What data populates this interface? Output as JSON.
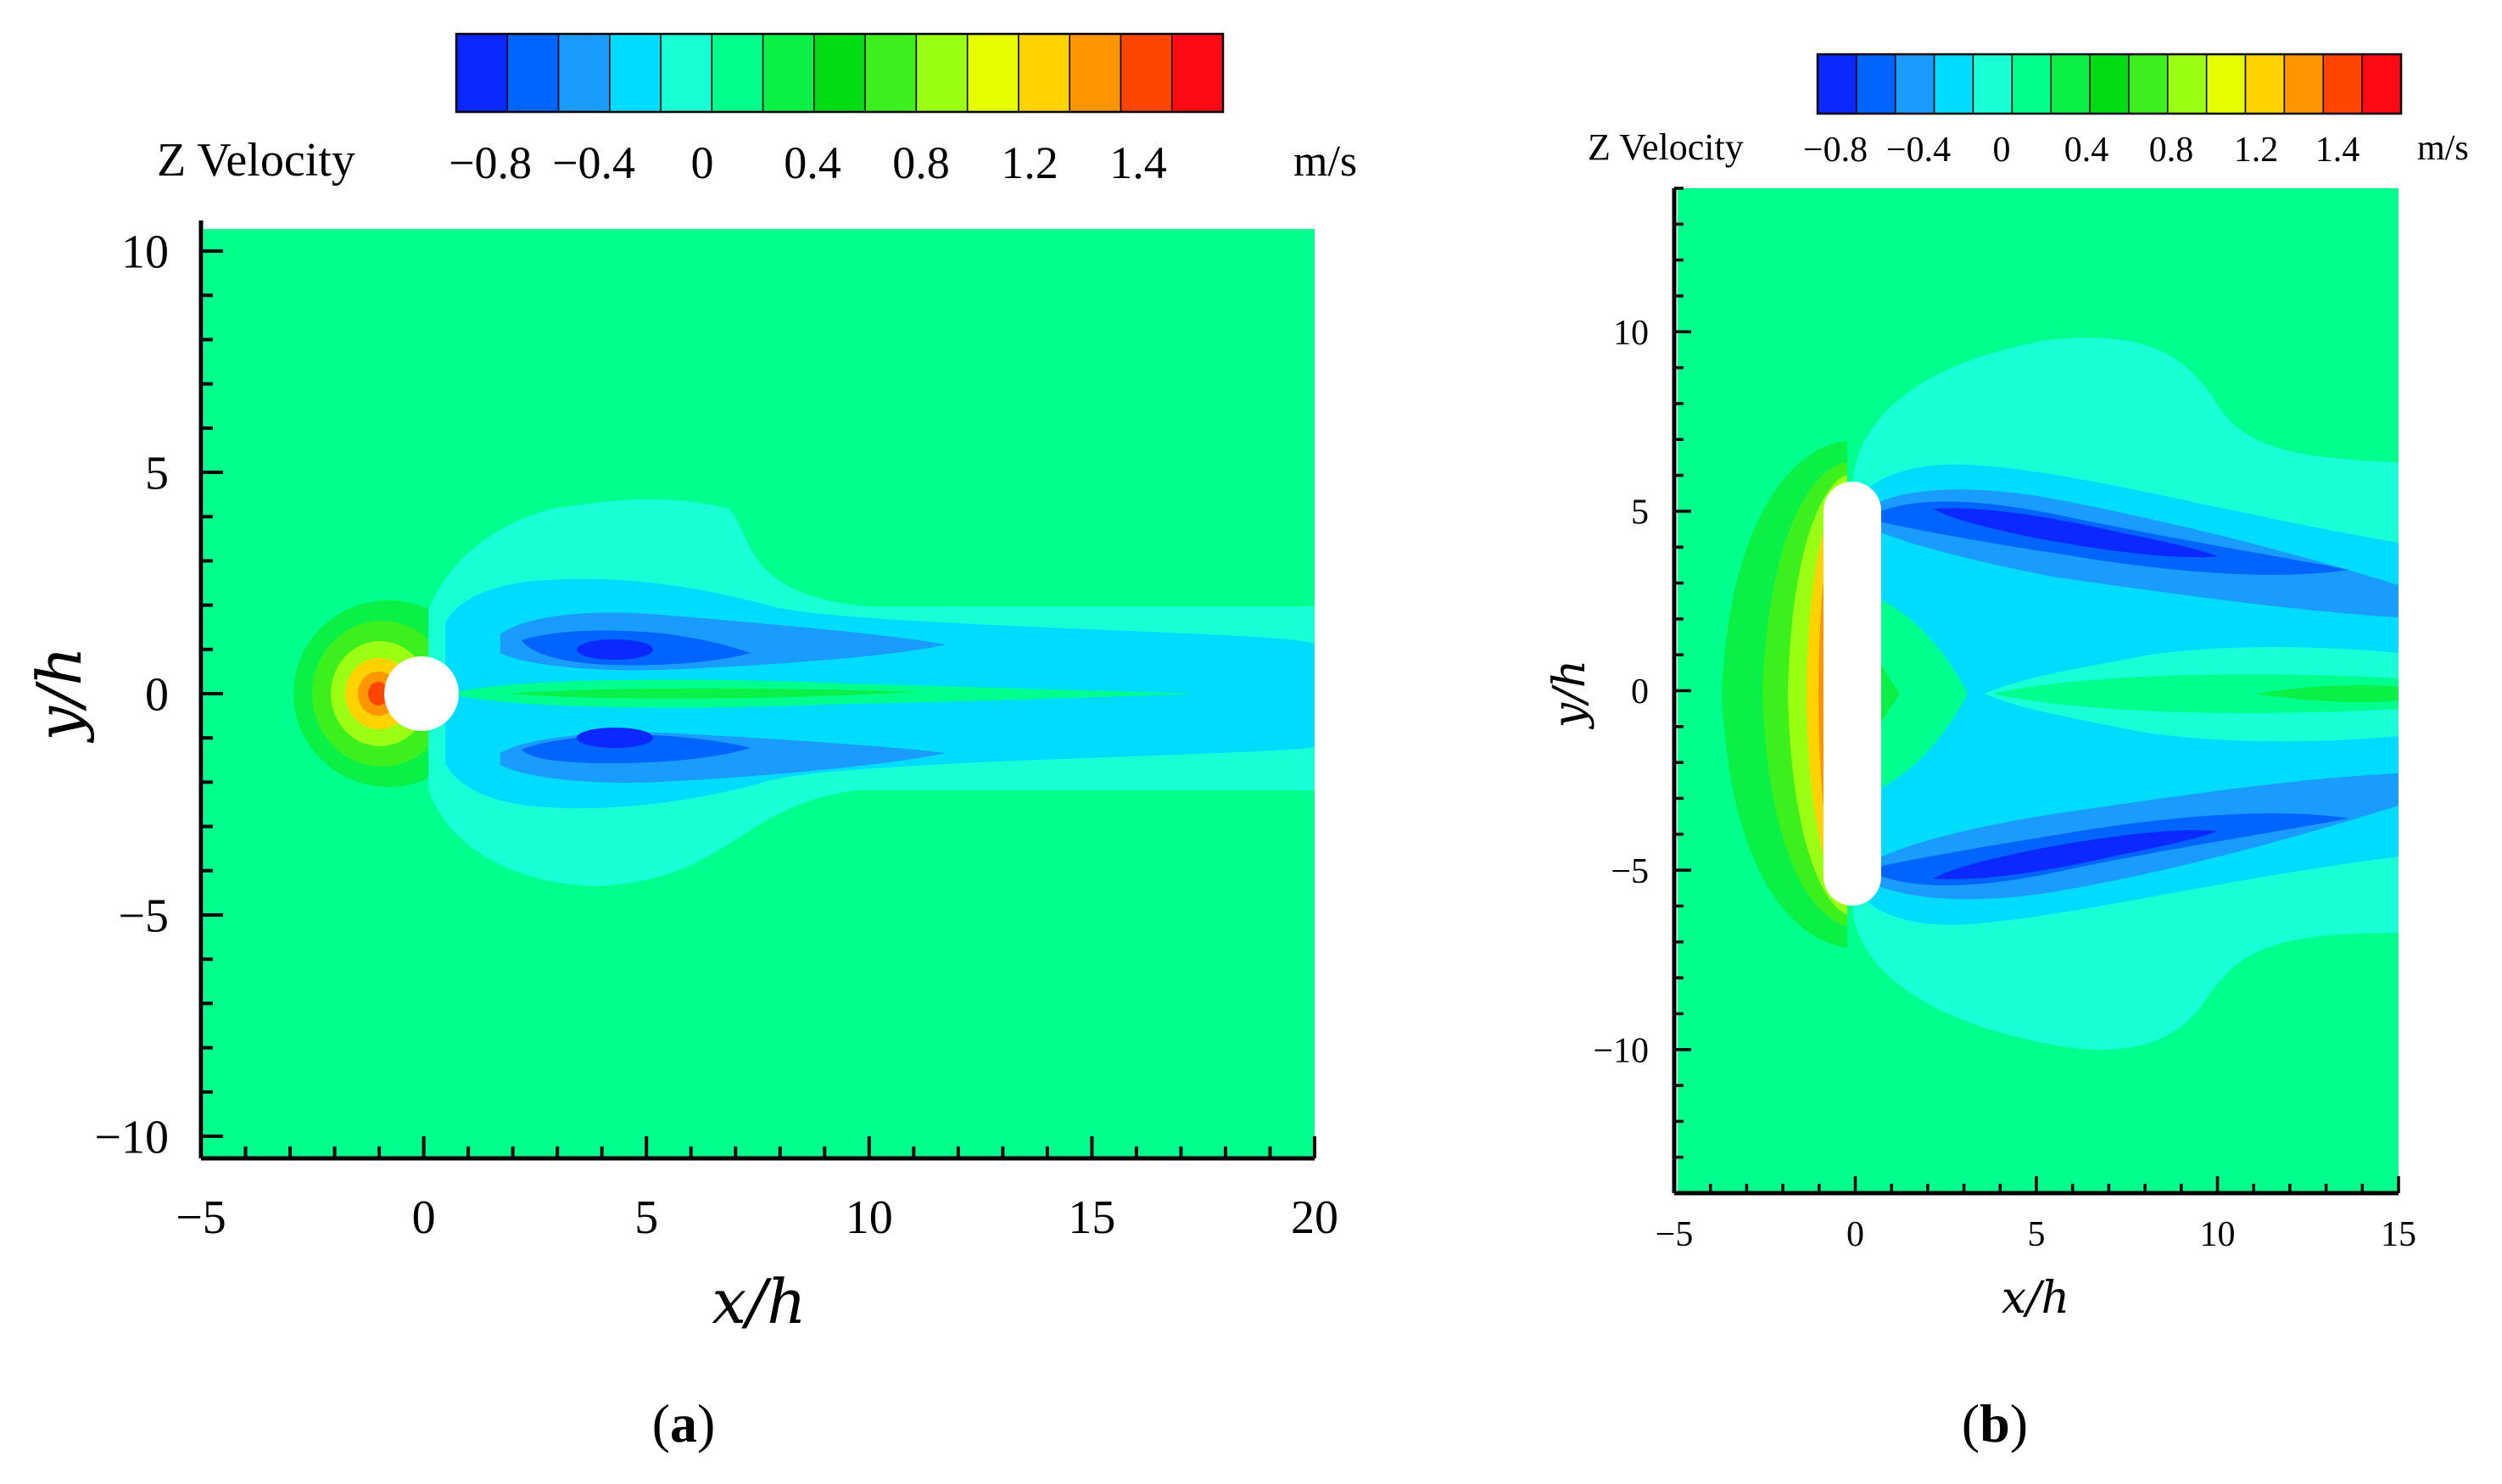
{
  "chart_data": [
    {
      "type": "heatmap",
      "panel_label": "(a)",
      "panel_letter": "a",
      "colorbar": {
        "label": "Z Velocity",
        "unit": "m/s",
        "ticks": [
          "−0.8",
          "−0.4",
          "0",
          "0.4",
          "0.8",
          "1.2",
          "1.4"
        ],
        "colors": [
          "#0a28ff",
          "#0064ff",
          "#1a9cff",
          "#00dcff",
          "#19ffd6",
          "#00ff8c",
          "#0af046",
          "#00dc14",
          "#3cf01e",
          "#9bff14",
          "#e6ff00",
          "#ffd200",
          "#ff9600",
          "#ff4600",
          "#ff0a14"
        ]
      },
      "xlabel": "x/h",
      "ylabel": "y/h",
      "xlim": [
        -5,
        20
      ],
      "ylim": [
        -10.5,
        10.5
      ],
      "xticks": [
        "−5",
        "0",
        "5",
        "10",
        "15",
        "20"
      ],
      "yticks": [
        "−10",
        "−5",
        "0",
        "5",
        "10"
      ],
      "obstacle": "circle",
      "background_color": "#00ff8c"
    },
    {
      "type": "heatmap",
      "panel_label": "(b)",
      "panel_letter": "b",
      "colorbar": {
        "label": "Z Velocity",
        "unit": "m/s",
        "ticks": [
          "−0.8",
          "−0.4",
          "0",
          "0.4",
          "0.8",
          "1.2",
          "1.4"
        ],
        "colors": [
          "#0a28ff",
          "#0064ff",
          "#1a9cff",
          "#00dcff",
          "#19ffd6",
          "#00ff8c",
          "#0af046",
          "#00dc14",
          "#3cf01e",
          "#9bff14",
          "#e6ff00",
          "#ffd200",
          "#ff9600",
          "#ff4600",
          "#ff0a14"
        ]
      },
      "xlabel": "x/h",
      "ylabel": "y/h",
      "xlim": [
        -5,
        15
      ],
      "ylim": [
        -14,
        14
      ],
      "xticks": [
        "−5",
        "0",
        "5",
        "10",
        "15"
      ],
      "yticks": [
        "−10",
        "−5",
        "0",
        "5",
        "10"
      ],
      "obstacle": "elongated plate",
      "background_color": "#00ff8c"
    }
  ]
}
